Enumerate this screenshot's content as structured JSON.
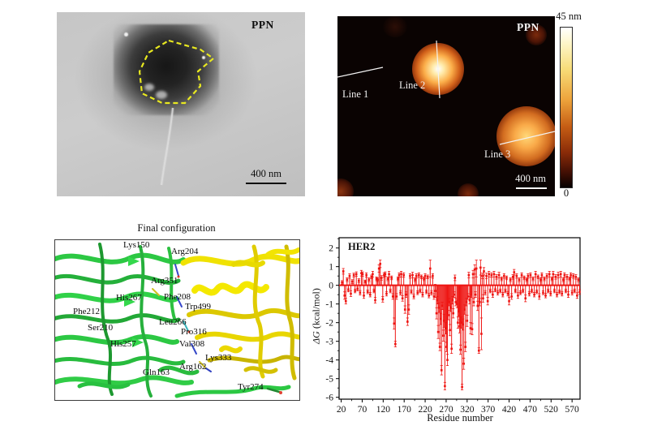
{
  "tem": {
    "label": "PPN",
    "scale_bar": "400 nm"
  },
  "afm": {
    "label": "PPN",
    "scale_bar": "400 nm",
    "line_labels": [
      "Line 1",
      "Line 2",
      "Line 3"
    ],
    "colorbar": {
      "max": "45 nm",
      "min": "0"
    }
  },
  "md": {
    "title": "Final configuration",
    "residues": [
      "Lys150",
      "Arg204",
      "Arg351",
      "His267",
      "Phe208",
      "Phe212",
      "Trp499",
      "Ser210",
      "Leu266",
      "Pro316",
      "His257",
      "Val308",
      "Lys333",
      "Arg162",
      "Gln163",
      "Tyr274"
    ]
  },
  "colors": {
    "chart_red": "#ee1512",
    "tem_outline_yellow": "#e8e820",
    "ribbon_green": "#2cc843",
    "ribbon_yellow": "#f0e400",
    "afm_background": "#0a0302"
  },
  "chart_data": {
    "type": "line",
    "subtype": "per-residue energy decomposition with error bars",
    "title": "HER2",
    "xlabel": "Residue number",
    "ylabel_symbol": "ΔG",
    "ylabel_unit": " (kcal/mol)",
    "xlim": [
      20,
      570
    ],
    "ylim": [
      -6,
      2
    ],
    "xticks": [
      20,
      70,
      120,
      170,
      220,
      270,
      320,
      370,
      420,
      470,
      520,
      570
    ],
    "yticks": [
      2,
      1,
      0,
      -1,
      -2,
      -3,
      -4,
      -5,
      -6
    ],
    "grid": false,
    "legend": null,
    "color": "#ee1512",
    "points": [
      [
        22,
        0.15,
        0.1
      ],
      [
        25,
        0.75,
        0.15
      ],
      [
        28,
        -0.55,
        0.2
      ],
      [
        31,
        -0.85,
        0.15
      ],
      [
        34,
        0.3,
        0.1
      ],
      [
        37,
        -0.25,
        0.1
      ],
      [
        40,
        0.5,
        0.12
      ],
      [
        43,
        -0.45,
        0.15
      ],
      [
        46,
        0.2,
        0.1
      ],
      [
        50,
        0.55,
        0.1
      ],
      [
        53,
        -0.3,
        0.1
      ],
      [
        56,
        0.6,
        0.12
      ],
      [
        59,
        -0.2,
        0.1
      ],
      [
        62,
        0.25,
        0.1
      ],
      [
        65,
        -0.4,
        0.12
      ],
      [
        68,
        0.65,
        0.15
      ],
      [
        71,
        0.6,
        0.12
      ],
      [
        74,
        -0.55,
        0.15
      ],
      [
        77,
        0.2,
        0.08
      ],
      [
        80,
        0.55,
        0.12
      ],
      [
        83,
        -0.35,
        0.1
      ],
      [
        86,
        0.3,
        0.1
      ],
      [
        89,
        -0.5,
        0.12
      ],
      [
        92,
        0.45,
        0.1
      ],
      [
        95,
        0.6,
        0.15
      ],
      [
        98,
        -0.3,
        0.1
      ],
      [
        101,
        -0.8,
        0.15
      ],
      [
        104,
        0.35,
        0.1
      ],
      [
        107,
        0.3,
        0.1
      ],
      [
        110,
        0.9,
        0.2
      ],
      [
        113,
        1.15,
        0.2
      ],
      [
        116,
        0.4,
        0.12
      ],
      [
        119,
        -0.75,
        0.15
      ],
      [
        122,
        0.55,
        0.12
      ],
      [
        125,
        0.6,
        0.12
      ],
      [
        128,
        -0.45,
        0.12
      ],
      [
        131,
        0.35,
        0.1
      ],
      [
        134,
        0.6,
        0.15
      ],
      [
        137,
        -0.3,
        0.1
      ],
      [
        140,
        0.4,
        0.1
      ],
      [
        143,
        -0.6,
        0.15
      ],
      [
        146,
        -2.05,
        0.3
      ],
      [
        149,
        -3.15,
        0.15
      ],
      [
        152,
        -0.6,
        0.15
      ],
      [
        155,
        0.35,
        0.1
      ],
      [
        158,
        0.55,
        0.12
      ],
      [
        161,
        -0.4,
        0.12
      ],
      [
        163,
        0.6,
        0.15
      ],
      [
        166,
        -0.7,
        0.15
      ],
      [
        169,
        0.55,
        0.12
      ],
      [
        172,
        -1.3,
        0.2
      ],
      [
        175,
        -0.5,
        0.15
      ],
      [
        178,
        -1.95,
        0.2
      ],
      [
        181,
        -1.3,
        0.25
      ],
      [
        184,
        0.5,
        0.12
      ],
      [
        187,
        -0.35,
        0.1
      ],
      [
        190,
        0.55,
        0.15
      ],
      [
        193,
        -0.6,
        0.12
      ],
      [
        196,
        0.3,
        0.1
      ],
      [
        199,
        0.5,
        0.12
      ],
      [
        202,
        -0.4,
        0.1
      ],
      [
        205,
        0.55,
        0.12
      ],
      [
        208,
        -0.3,
        0.1
      ],
      [
        211,
        0.45,
        0.1
      ],
      [
        214,
        -0.5,
        0.12
      ],
      [
        217,
        0.35,
        0.1
      ],
      [
        220,
        0.5,
        0.12
      ],
      [
        223,
        -0.35,
        0.1
      ],
      [
        226,
        0.45,
        0.1
      ],
      [
        229,
        -0.55,
        0.12
      ],
      [
        232,
        0.9,
        0.45
      ],
      [
        235,
        -0.4,
        0.12
      ],
      [
        238,
        0.5,
        0.12
      ],
      [
        241,
        -0.6,
        0.15
      ],
      [
        244,
        -0.3,
        0.35
      ],
      [
        247,
        -1.5,
        0.3
      ],
      [
        249,
        -0.8,
        0.2
      ],
      [
        251,
        -2.5,
        0.35
      ],
      [
        253,
        -1.2,
        0.25
      ],
      [
        255,
        -3.3,
        0.2
      ],
      [
        257,
        -1.8,
        0.3
      ],
      [
        259,
        -4.55,
        0.25
      ],
      [
        261,
        -1.1,
        0.2
      ],
      [
        263,
        -2.7,
        0.3
      ],
      [
        265,
        -1.9,
        0.35
      ],
      [
        267,
        -5.4,
        0.2
      ],
      [
        269,
        -2.3,
        0.3
      ],
      [
        271,
        -3.3,
        0.25
      ],
      [
        273,
        -4.0,
        0.3
      ],
      [
        275,
        -1.6,
        0.25
      ],
      [
        277,
        -0.9,
        0.2
      ],
      [
        279,
        -2.4,
        0.3
      ],
      [
        281,
        -1.2,
        0.2
      ],
      [
        283,
        -3.4,
        0.25
      ],
      [
        285,
        -0.8,
        0.2
      ],
      [
        287,
        -1.5,
        0.25
      ],
      [
        289,
        -0.5,
        0.15
      ],
      [
        291,
        0.4,
        0.15
      ],
      [
        293,
        -0.9,
        0.2
      ],
      [
        296,
        -1.0,
        0.2
      ],
      [
        298,
        -2.0,
        0.3
      ],
      [
        300,
        -1.4,
        0.25
      ],
      [
        302,
        -2.2,
        0.35
      ],
      [
        304,
        -3.45,
        0.25
      ],
      [
        306,
        -2.0,
        0.3
      ],
      [
        308,
        -5.45,
        0.15
      ],
      [
        310,
        -2.1,
        0.3
      ],
      [
        312,
        -4.2,
        0.3
      ],
      [
        314,
        -1.3,
        0.25
      ],
      [
        316,
        -3.3,
        0.25
      ],
      [
        318,
        -0.9,
        0.2
      ],
      [
        320,
        -1.9,
        0.3
      ],
      [
        322,
        -0.6,
        0.15
      ],
      [
        324,
        0.55,
        0.15
      ],
      [
        326,
        -0.8,
        0.2
      ],
      [
        328,
        -2.3,
        0.3
      ],
      [
        330,
        -0.5,
        0.15
      ],
      [
        332,
        -2.35,
        0.3
      ],
      [
        334,
        0.6,
        0.2
      ],
      [
        336,
        -0.9,
        0.2
      ],
      [
        338,
        0.85,
        0.25
      ],
      [
        340,
        -0.5,
        0.15
      ],
      [
        342,
        0.9,
        0.45
      ],
      [
        345,
        -1.1,
        0.25
      ],
      [
        348,
        -3.5,
        0.15
      ],
      [
        350,
        -0.9,
        0.2
      ],
      [
        352,
        0.95,
        0.4
      ],
      [
        354,
        -2.6,
        0.85
      ],
      [
        356,
        0.5,
        0.15
      ],
      [
        358,
        -0.7,
        0.2
      ],
      [
        360,
        0.75,
        0.2
      ],
      [
        363,
        -0.4,
        0.12
      ],
      [
        366,
        0.5,
        0.15
      ],
      [
        369,
        -0.85,
        0.2
      ],
      [
        372,
        0.6,
        0.15
      ],
      [
        375,
        -0.3,
        0.1
      ],
      [
        378,
        0.55,
        0.12
      ],
      [
        381,
        -0.5,
        0.15
      ],
      [
        384,
        0.6,
        0.15
      ],
      [
        387,
        -0.25,
        0.1
      ],
      [
        390,
        0.45,
        0.12
      ],
      [
        393,
        -0.4,
        0.12
      ],
      [
        396,
        0.55,
        0.15
      ],
      [
        399,
        -0.3,
        0.1
      ],
      [
        402,
        0.35,
        0.1
      ],
      [
        405,
        -0.5,
        0.12
      ],
      [
        408,
        0.5,
        0.12
      ],
      [
        411,
        -0.3,
        0.1
      ],
      [
        414,
        0.4,
        0.1
      ],
      [
        417,
        -0.45,
        0.12
      ],
      [
        420,
        -0.85,
        0.2
      ],
      [
        423,
        0.3,
        0.1
      ],
      [
        426,
        -0.6,
        0.15
      ],
      [
        429,
        0.45,
        0.12
      ],
      [
        432,
        0.7,
        0.15
      ],
      [
        435,
        -0.3,
        0.1
      ],
      [
        438,
        0.5,
        0.12
      ],
      [
        441,
        -0.55,
        0.15
      ],
      [
        444,
        0.3,
        0.1
      ],
      [
        447,
        -0.4,
        0.1
      ],
      [
        450,
        0.55,
        0.12
      ],
      [
        453,
        -0.3,
        0.1
      ],
      [
        456,
        0.4,
        0.1
      ],
      [
        459,
        -0.7,
        0.18
      ],
      [
        462,
        0.3,
        0.1
      ],
      [
        465,
        0.5,
        0.12
      ],
      [
        468,
        -0.45,
        0.12
      ],
      [
        471,
        0.55,
        0.12
      ],
      [
        474,
        -0.3,
        0.1
      ],
      [
        477,
        0.35,
        0.1
      ],
      [
        480,
        -0.5,
        0.12
      ],
      [
        483,
        0.6,
        0.15
      ],
      [
        486,
        -0.35,
        0.1
      ],
      [
        489,
        0.45,
        0.1
      ],
      [
        492,
        -0.6,
        0.15
      ],
      [
        495,
        0.3,
        0.1
      ],
      [
        498,
        0.55,
        0.12
      ],
      [
        501,
        -0.4,
        0.1
      ],
      [
        504,
        0.35,
        0.1
      ],
      [
        507,
        -0.55,
        0.12
      ],
      [
        510,
        0.5,
        0.12
      ],
      [
        513,
        -0.3,
        0.1
      ],
      [
        516,
        0.6,
        0.15
      ],
      [
        519,
        -0.45,
        0.12
      ],
      [
        522,
        0.35,
        0.1
      ],
      [
        525,
        0.6,
        0.15
      ],
      [
        528,
        -0.3,
        0.1
      ],
      [
        531,
        0.45,
        0.12
      ],
      [
        534,
        -0.5,
        0.12
      ],
      [
        537,
        0.55,
        0.15
      ],
      [
        540,
        -0.35,
        0.1
      ],
      [
        543,
        0.6,
        0.15
      ],
      [
        546,
        -0.45,
        0.12
      ],
      [
        549,
        0.3,
        0.1
      ],
      [
        552,
        0.55,
        0.12
      ],
      [
        555,
        -0.3,
        0.1
      ],
      [
        558,
        0.45,
        0.12
      ],
      [
        561,
        -0.5,
        0.15
      ],
      [
        564,
        0.35,
        0.1
      ],
      [
        567,
        0.55,
        0.12
      ],
      [
        570,
        -0.4,
        0.12
      ],
      [
        573,
        0.5,
        0.12
      ],
      [
        576,
        -0.3,
        0.1
      ],
      [
        579,
        0.45,
        0.12
      ],
      [
        582,
        -0.55,
        0.15
      ],
      [
        585,
        0.3,
        0.1
      ],
      [
        588,
        -0.35,
        0.12
      ]
    ]
  }
}
